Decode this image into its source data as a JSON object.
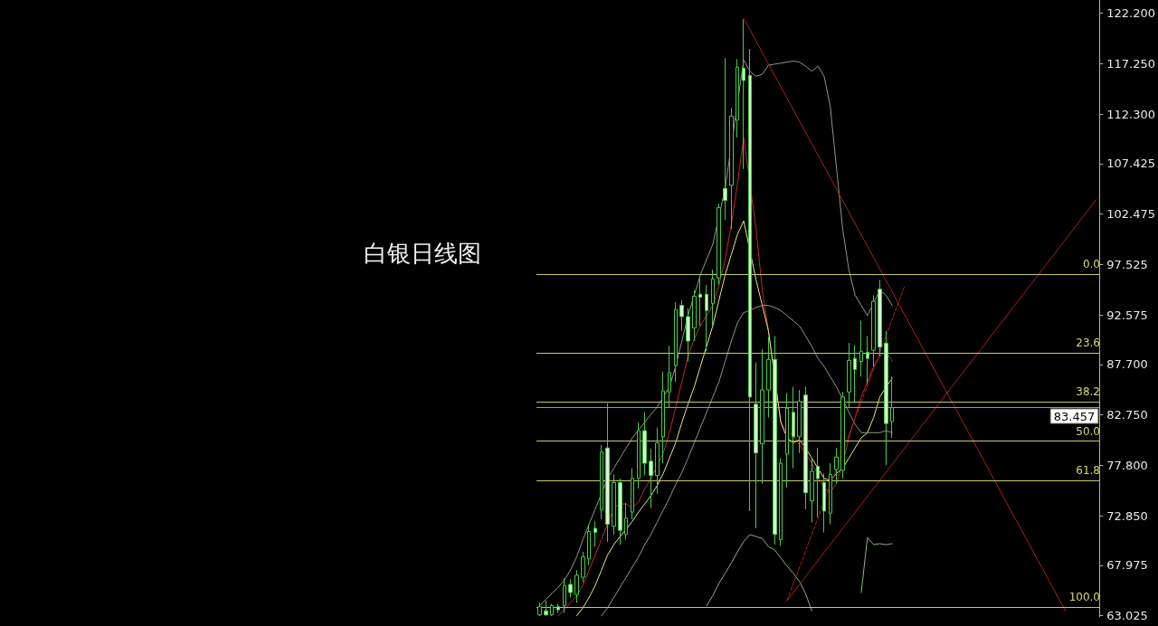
{
  "chart_data": {
    "type": "candlestick",
    "title": "白银日线图",
    "categories": [
      null,
      null,
      null,
      null,
      null,
      null,
      null,
      null,
      null,
      null,
      null,
      null,
      null,
      null,
      null,
      null,
      null,
      null,
      null,
      null,
      null,
      null,
      null,
      null,
      null,
      null,
      null,
      null,
      null,
      null,
      null,
      null,
      null,
      null,
      null,
      null,
      null,
      null,
      null,
      null,
      null,
      null,
      null,
      null,
      null,
      null,
      null,
      null,
      null,
      null,
      null,
      null,
      null,
      null,
      null,
      null,
      null,
      null,
      null,
      null,
      null,
      null,
      null,
      null,
      null,
      null,
      null,
      null,
      null,
      null,
      null,
      null,
      null,
      null,
      null,
      null,
      null,
      null,
      null,
      null,
      null,
      null,
      null,
      null,
      null,
      null,
      null,
      null,
      null,
      null,
      null
    ],
    "ohlc": [
      [
        63.1,
        64.3,
        63.0,
        63.9
      ],
      [
        63.5,
        64.5,
        63.0,
        63.1
      ],
      [
        63.1,
        64.2,
        63.0,
        64.0
      ],
      [
        63.9,
        64.2,
        63.3,
        63.6
      ],
      [
        64.0,
        66.7,
        63.3,
        66.0
      ],
      [
        66.1,
        66.6,
        64.8,
        65.3
      ],
      [
        65.1,
        67.5,
        64.3,
        67.0
      ],
      [
        66.8,
        69.3,
        66.3,
        68.8
      ],
      [
        68.6,
        72.0,
        68.0,
        71.3
      ],
      [
        71.6,
        72.3,
        69.8,
        71.2
      ],
      [
        73.4,
        79.8,
        72.5,
        79.1
      ],
      [
        79.5,
        83.9,
        70.3,
        72.0
      ],
      [
        71.8,
        76.9,
        71.0,
        76.1
      ],
      [
        76.1,
        76.5,
        70.0,
        71.4
      ],
      [
        71.0,
        74.1,
        70.5,
        72.6
      ],
      [
        73.2,
        77.5,
        72.5,
        76.5
      ],
      [
        76.5,
        82.0,
        75.5,
        81.2
      ],
      [
        81.2,
        83.0,
        76.8,
        78.0
      ],
      [
        78.2,
        79.4,
        73.6,
        76.8
      ],
      [
        76.8,
        81.5,
        75.0,
        80.0
      ],
      [
        80.6,
        87.0,
        78.0,
        85.1
      ],
      [
        85.0,
        89.5,
        83.5,
        86.9
      ],
      [
        87.6,
        93.8,
        86.0,
        93.1
      ],
      [
        93.5,
        94.0,
        91.0,
        92.4
      ],
      [
        92.4,
        93.2,
        88.0,
        90.0
      ],
      [
        91.3,
        95.0,
        90.0,
        94.4
      ],
      [
        94.6,
        96.3,
        91.5,
        94.3
      ],
      [
        94.6,
        95.5,
        89.0,
        93.0
      ],
      [
        93.7,
        97.0,
        91.5,
        96.1
      ],
      [
        96.2,
        103.5,
        95.5,
        103.1
      ],
      [
        105.0,
        117.8,
        101.9,
        103.8
      ],
      [
        105.3,
        112.9,
        101.0,
        112.1
      ],
      [
        111.7,
        117.7,
        110.0,
        116.9
      ],
      [
        116.8,
        121.6,
        106.9,
        115.6
      ],
      [
        116.1,
        118.7,
        73.3,
        84.5
      ],
      [
        83.8,
        87.9,
        71.6,
        79.0
      ],
      [
        79.9,
        89.2,
        76.0,
        85.2
      ],
      [
        85.2,
        90.4,
        82.5,
        88.2
      ],
      [
        88.2,
        90.5,
        70.0,
        71.0
      ],
      [
        70.5,
        78.5,
        69.9,
        78.0
      ],
      [
        78.9,
        84.9,
        75.6,
        83.4
      ],
      [
        83.0,
        85.5,
        77.5,
        80.6
      ],
      [
        80.6,
        85.2,
        79.0,
        84.1
      ],
      [
        84.7,
        85.5,
        73.5,
        75.1
      ],
      [
        74.3,
        78.5,
        72.2,
        77.2
      ],
      [
        77.7,
        79.5,
        72.7,
        76.5
      ],
      [
        76.1,
        77.0,
        71.2,
        73.3
      ],
      [
        73.1,
        78.0,
        72.0,
        76.9
      ],
      [
        77.4,
        79.5,
        76.0,
        78.6
      ],
      [
        77.3,
        85.0,
        76.5,
        84.5
      ],
      [
        85.0,
        89.8,
        83.5,
        88.1
      ],
      [
        88.3,
        89.6,
        84.0,
        87.2
      ],
      [
        88.0,
        92.0,
        86.5,
        89.0
      ],
      [
        88.9,
        90.5,
        85.8,
        88.3
      ],
      [
        89.1,
        94.5,
        87.5,
        93.9
      ],
      [
        95.1,
        96.0,
        88.5,
        89.4
      ],
      [
        89.8,
        91.0,
        77.8,
        81.9
      ],
      [
        82.1,
        86.5,
        80.5,
        83.457
      ],
      null,
      null,
      null,
      null,
      null,
      null,
      null,
      null,
      null,
      null,
      null,
      null,
      null,
      null,
      null,
      null,
      null,
      null,
      null,
      null,
      null,
      null,
      null,
      null,
      null,
      null,
      null,
      null,
      null,
      null,
      null,
      null,
      null
    ],
    "color": "#44cc44",
    "series": [
      {
        "type": "line",
        "color": "#c02830",
        "values": [
          null,
          null,
          null,
          63.0,
          63.6,
          64.3,
          65.0,
          66.0,
          67.5,
          69.0,
          70.5,
          null,
          73.6,
          74.0,
          74.0,
          73.6,
          74.2,
          75.5,
          76.5,
          null,
          79.0,
          81.0,
          83.5,
          86.0,
          88.5,
          90.2,
          91.5,
          92.5,
          93.5,
          95.5,
          98.0,
          101.5,
          105.5,
          110.0,
          null,
          101.0,
          95.0,
          91.0,
          null,
          82.0,
          81.0,
          80.8,
          79.8,
          79.0,
          78.0,
          76.8,
          75.5,
          75.2,
          76.0,
          78.0,
          80.5,
          82.5,
          84.5,
          86.0,
          87.5,
          88.5,
          89.0,
          88.0,
          null,
          null,
          null,
          null,
          null,
          null,
          null,
          null,
          null,
          null,
          null,
          null,
          null,
          null,
          null,
          null,
          null,
          null,
          null,
          null,
          null,
          null,
          null,
          null,
          null,
          null,
          null,
          null,
          null,
          null,
          null,
          null,
          null
        ]
      },
      {
        "type": "line",
        "color": "#e6e68c",
        "values": [
          null,
          null,
          null,
          null,
          null,
          null,
          63.0,
          63.8,
          64.8,
          66.0,
          67.5,
          69.0,
          70.0,
          70.8,
          71.5,
          72.3,
          73.2,
          74.0,
          74.8,
          75.8,
          77.0,
          78.5,
          80.0,
          82.0,
          83.8,
          85.5,
          87.5,
          89.5,
          91.5,
          94.0,
          96.5,
          98.5,
          100.5,
          101.8,
          null,
          96.0,
          93.5,
          91.0,
          null,
          82.0,
          80.5,
          80.0,
          80.3,
          79.5,
          78.5,
          77.5,
          76.5,
          76.3,
          77.0,
          77.5,
          78.5,
          79.5,
          80.5,
          81.0,
          82.5,
          84.5,
          85.5,
          86.3,
          null,
          null,
          null,
          null,
          null,
          null,
          null,
          null,
          null,
          null,
          null,
          null,
          null,
          null,
          null,
          null,
          null,
          null,
          null,
          null,
          null,
          null,
          null,
          null,
          null,
          null,
          null,
          null,
          null,
          null,
          null,
          null,
          null
        ]
      },
      {
        "type": "line",
        "color": "#8a9a88",
        "values": [
          64.0,
          64.6,
          65.2,
          65.8,
          66.5,
          67.5,
          68.8,
          70.5,
          72.0,
          73.5,
          75.0,
          76.5,
          77.5,
          78.5,
          79.5,
          80.5,
          81.3,
          82.0,
          82.8,
          83.5,
          84.5,
          85.5,
          87.5,
          90.0,
          92.5,
          94.5,
          96.5,
          98.0,
          99.5,
          null,
          105.0,
          null,
          null,
          117.6,
          116.5,
          116.0,
          116.2,
          117.1,
          117.2,
          117.3,
          117.4,
          117.5,
          117.4,
          117.0,
          116.5,
          117.0,
          116.0,
          113.0,
          107.0,
          101.0,
          97.0,
          94.5,
          93.5,
          92.5,
          null,
          95.0,
          94.5,
          93.5,
          null,
          null,
          null,
          null,
          null,
          null,
          null,
          null,
          null,
          null,
          null,
          null,
          null,
          null,
          null,
          null,
          null,
          null,
          null,
          null,
          null,
          null,
          null,
          null,
          null,
          null,
          null,
          null,
          null,
          null,
          null,
          null,
          null
        ]
      },
      {
        "type": "line",
        "color": "#8a9a88",
        "values": [
          null,
          null,
          null,
          null,
          null,
          null,
          null,
          null,
          null,
          null,
          63.0,
          63.8,
          64.8,
          65.8,
          66.8,
          67.8,
          68.8,
          70.0,
          71.0,
          72.2,
          73.4,
          74.6,
          75.9,
          77.1,
          78.5,
          80.0,
          81.5,
          83.0,
          84.5,
          86.0,
          88.0,
          90.0,
          91.8,
          92.8,
          93.0,
          93.3,
          93.5,
          93.5,
          93.3,
          93.0,
          92.5,
          92.0,
          91.5,
          90.5,
          89.5,
          88.3,
          87.5,
          86.5,
          85.5,
          84.3,
          83.0,
          81.8,
          81.0,
          81.0,
          81.0,
          81.0,
          81.2,
          81.0,
          null,
          null,
          null,
          null,
          null,
          null,
          null,
          null,
          null,
          null,
          null,
          null,
          null,
          null,
          null,
          null,
          null,
          null,
          null,
          null,
          null,
          null,
          null,
          null,
          null,
          null,
          null,
          null,
          null,
          null,
          null,
          null,
          null
        ]
      },
      {
        "type": "line",
        "color": "#8fb08a",
        "values": [
          null,
          null,
          null,
          null,
          null,
          null,
          null,
          null,
          null,
          null,
          null,
          null,
          null,
          null,
          null,
          null,
          null,
          null,
          null,
          null,
          null,
          null,
          null,
          null,
          null,
          null,
          null,
          64.0,
          65.0,
          66.2,
          67.2,
          68.2,
          69.3,
          70.3,
          71.0,
          70.8,
          70.6,
          69.8,
          69.5,
          68.7,
          67.9,
          67.2,
          66.4,
          65.2,
          63.5,
          null,
          null,
          null,
          null,
          null,
          null,
          null,
          null,
          null,
          null,
          null,
          null,
          null,
          null,
          null,
          null,
          null,
          null,
          null,
          null,
          null,
          null,
          null,
          null,
          null,
          null,
          null,
          null,
          null,
          null,
          null,
          null,
          null,
          null,
          null,
          null,
          null,
          null,
          null,
          null,
          null,
          null,
          null,
          null,
          null,
          null
        ]
      },
      {
        "type": "line",
        "color": "#8fb08a",
        "values": [
          null,
          null,
          null,
          null,
          null,
          null,
          null,
          null,
          null,
          null,
          null,
          null,
          null,
          null,
          null,
          null,
          null,
          null,
          null,
          null,
          null,
          null,
          null,
          null,
          null,
          null,
          null,
          null,
          null,
          null,
          null,
          null,
          null,
          null,
          null,
          null,
          null,
          null,
          null,
          null,
          null,
          null,
          null,
          null,
          null,
          null,
          null,
          null,
          null,
          null,
          null,
          null,
          65.3,
          70.7,
          70.0,
          70.1,
          70.0,
          70.1,
          null,
          null,
          null,
          null,
          null,
          null,
          null,
          null,
          null,
          null,
          null,
          null,
          null,
          null,
          null,
          null,
          null,
          null,
          null,
          null,
          null,
          null,
          null,
          null,
          null,
          null,
          null,
          null,
          null,
          null,
          null,
          null,
          null
        ]
      },
      {
        "type": "line",
        "color": "#a82020",
        "values": [
          null,
          null,
          null,
          null,
          null,
          null,
          null,
          null,
          null,
          null,
          null,
          null,
          null,
          null,
          null,
          null,
          null,
          null,
          null,
          null,
          null,
          null,
          null,
          null,
          null,
          null,
          null,
          null,
          null,
          null,
          null,
          null,
          null,
          121.7,
          null,
          null,
          null,
          null,
          null,
          null,
          null,
          null,
          null,
          null,
          null,
          null,
          null,
          null,
          null,
          null,
          null,
          null,
          null,
          null,
          null,
          null,
          null,
          null,
          null,
          null,
          null,
          null,
          null,
          null,
          null,
          null,
          null,
          null,
          null,
          null,
          null,
          null,
          null,
          null,
          null,
          null,
          null,
          null,
          null,
          null,
          null,
          null,
          null,
          null,
          null,
          63.5,
          null,
          null,
          null,
          null,
          null
        ]
      },
      {
        "type": "line",
        "color": "#a82020",
        "values": [
          null,
          null,
          null,
          null,
          null,
          null,
          null,
          null,
          null,
          null,
          null,
          null,
          null,
          null,
          null,
          null,
          null,
          null,
          null,
          null,
          null,
          null,
          null,
          null,
          null,
          null,
          null,
          null,
          null,
          null,
          null,
          null,
          null,
          null,
          null,
          null,
          null,
          null,
          null,
          null,
          64.5,
          null,
          null,
          null,
          null,
          null,
          null,
          null,
          null,
          null,
          null,
          null,
          null,
          null,
          null,
          null,
          null,
          null,
          null,
          null,
          null,
          null,
          null,
          null,
          null,
          null,
          null,
          null,
          null,
          null,
          null,
          null,
          null,
          null,
          null,
          null,
          null,
          null,
          null,
          null,
          null,
          null,
          null,
          null,
          null,
          null,
          null,
          null,
          null,
          null,
          103.9
        ]
      },
      {
        "type": "line",
        "color": "#a82020",
        "line_style": "dashed",
        "values": [
          null,
          null,
          null,
          null,
          null,
          null,
          null,
          null,
          null,
          null,
          null,
          null,
          null,
          null,
          null,
          null,
          null,
          null,
          null,
          null,
          null,
          null,
          null,
          null,
          null,
          null,
          null,
          null,
          null,
          null,
          null,
          null,
          null,
          null,
          null,
          null,
          null,
          null,
          null,
          null,
          64.5,
          null,
          null,
          null,
          null,
          null,
          null,
          null,
          null,
          null,
          null,
          null,
          null,
          null,
          null,
          null,
          null,
          null,
          null,
          95.4,
          null,
          null,
          null,
          null,
          null,
          null,
          null,
          null,
          null,
          null,
          null,
          null,
          null,
          null,
          null,
          null,
          null,
          null,
          null,
          null,
          null,
          null,
          null,
          null,
          null,
          null,
          null,
          null,
          null,
          null,
          null
        ]
      }
    ],
    "ylim": [
      62.9,
      123.5
    ],
    "yticks": [
      {
        "value": 122.2,
        "label": "122.200"
      },
      {
        "value": 117.25,
        "label": "117.250"
      },
      {
        "value": 112.3,
        "label": "112.300"
      },
      {
        "value": 107.425,
        "label": "107.425"
      },
      {
        "value": 102.475,
        "label": "102.475"
      },
      {
        "value": 97.525,
        "label": "97.525"
      },
      {
        "value": 92.575,
        "label": "92.575"
      },
      {
        "value": 87.7,
        "label": "87.700"
      },
      {
        "value": 82.75,
        "label": "82.750"
      },
      {
        "value": 77.8,
        "label": "77.800"
      },
      {
        "value": 72.85,
        "label": "72.850"
      },
      {
        "value": 67.975,
        "label": "67.975"
      },
      {
        "value": 63.025,
        "label": "63.025"
      }
    ],
    "ref_lines": [
      {
        "axis": "y",
        "value": 96.54,
        "color": "#c8c86a"
      },
      {
        "axis": "y",
        "value": 88.83,
        "color": "#c8c86a"
      },
      {
        "axis": "y",
        "value": 84.02,
        "color": "#c8c86a"
      },
      {
        "axis": "y",
        "value": 80.17,
        "color": "#c8c86a"
      },
      {
        "axis": "y",
        "value": 76.32,
        "color": "#c8c86a"
      },
      {
        "axis": "y",
        "value": 63.88,
        "color": "#c8c86a"
      },
      {
        "axis": "y",
        "value": 83.457,
        "label": "83.457",
        "color": "#9a9a9a"
      }
    ],
    "annotations": [
      {
        "text": "0.0",
        "y": 96.54
      },
      {
        "text": "23.6",
        "y": 88.83
      },
      {
        "text": "38.2",
        "y": 84.02
      },
      {
        "text": "50.0",
        "y": 80.17
      },
      {
        "text": "61.8",
        "y": 76.32
      },
      {
        "text": "100.0",
        "y": 63.88
      }
    ],
    "grid": false,
    "tick_labels": "y"
  }
}
